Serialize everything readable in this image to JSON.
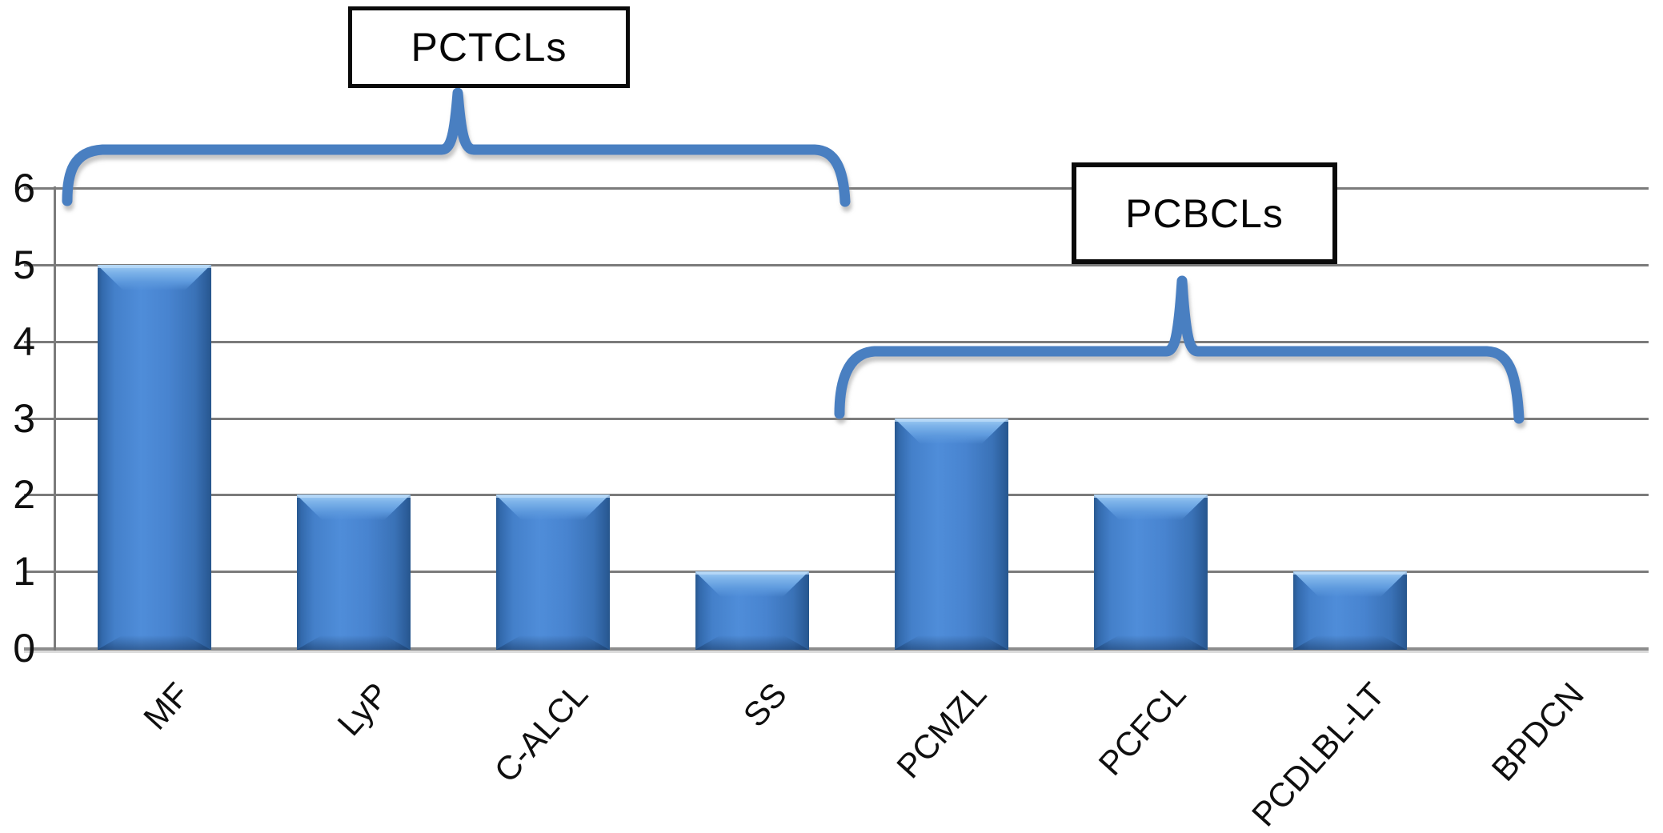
{
  "chart_data": {
    "type": "bar",
    "title": "",
    "categories": [
      "MF",
      "LyP",
      "C-ALCL",
      "SS",
      "PCMZL",
      "PCFCL",
      "PCDLBL-LT",
      "BPDCN"
    ],
    "values": [
      5,
      2,
      2,
      1,
      3,
      2,
      1,
      0
    ],
    "xlabel": "",
    "ylabel": "",
    "ylim": [
      0,
      6
    ],
    "yticks": [
      0,
      1,
      2,
      3,
      4,
      5,
      6
    ],
    "grid": true,
    "legend": false,
    "groups": [
      {
        "label": "PCTCLs",
        "categories": [
          "MF",
          "LyP",
          "C-ALCL",
          "SS"
        ]
      },
      {
        "label": "PCBCLs",
        "categories": [
          "PCMZL",
          "PCFCL",
          "PCDLBL-LT",
          "BPDCN"
        ]
      }
    ],
    "colors": {
      "bar_main": "#4482cd",
      "bar_dark_edge": "#2b5d9d",
      "bar_highlight": "#8fc0ee",
      "brace": "#4a7fc1",
      "gridline": "#7b7b7b",
      "text": "#0f0f0f",
      "box_border": "#0a0a0a",
      "box_background": "#ffffff"
    }
  }
}
